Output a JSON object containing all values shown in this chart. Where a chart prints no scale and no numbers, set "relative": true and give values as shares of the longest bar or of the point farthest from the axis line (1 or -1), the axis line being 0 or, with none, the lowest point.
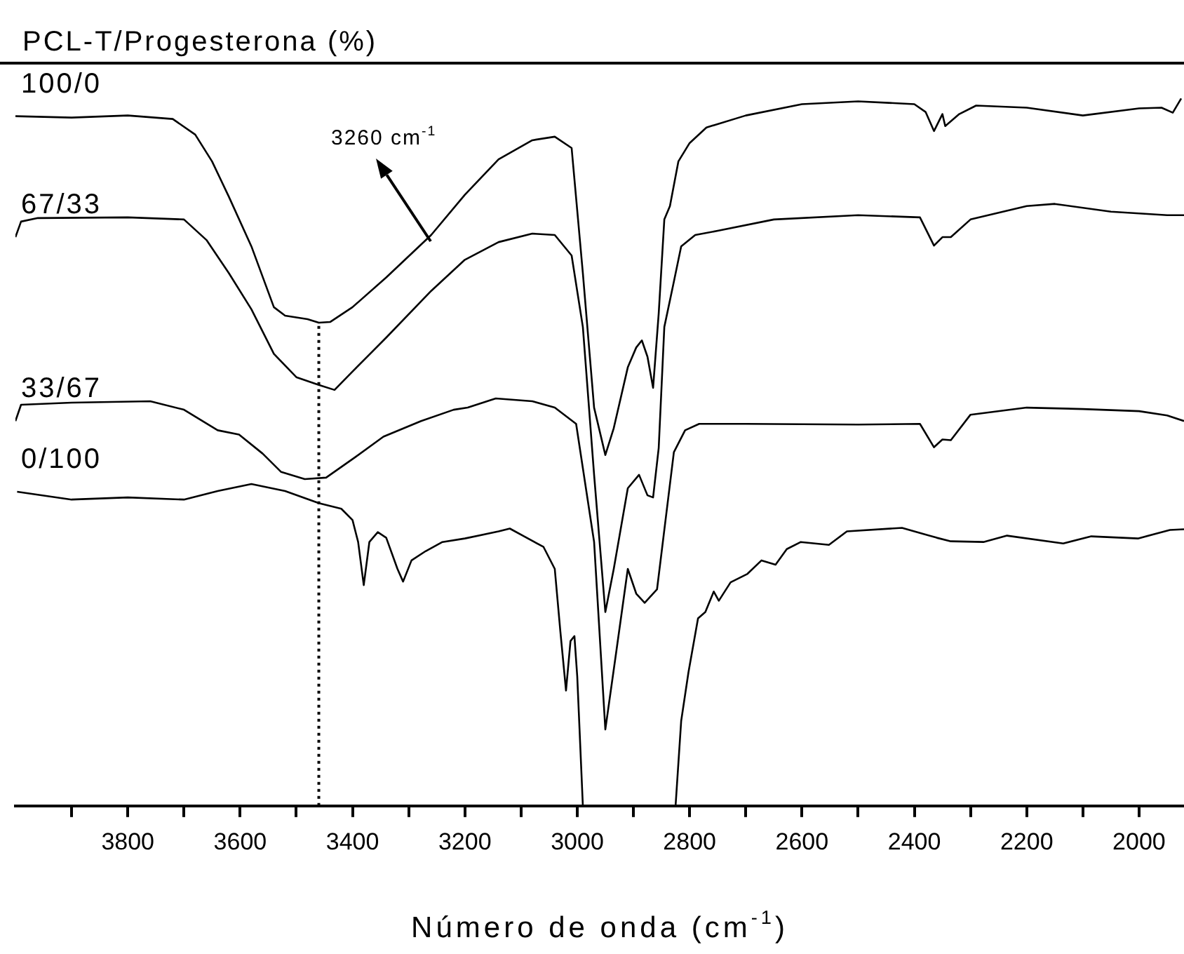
{
  "chart_data": {
    "type": "line",
    "title": "PCL-T/Progesterona (%)",
    "xlabel": "Número de onda (cm$^{-1}$)",
    "relative": true,
    "legend": false,
    "grid": false,
    "marker": "none",
    "line_style": "solid",
    "xlim": [
      4000,
      1920
    ],
    "xticks": [
      {
        "value": 3900,
        "label": null
      },
      3800,
      {
        "value": 3700,
        "label": null
      },
      3600,
      {
        "value": 3500,
        "label": null
      },
      3400,
      {
        "value": 3300,
        "label": null
      },
      3200,
      {
        "value": 3100,
        "label": null
      },
      3000,
      {
        "value": 2900,
        "label": null
      },
      2800,
      {
        "value": 2700,
        "label": null
      },
      2600,
      {
        "value": 2500,
        "label": null
      },
      2400,
      {
        "value": 2300,
        "label": null
      },
      2200,
      {
        "value": 2100,
        "label": null
      },
      2000
    ],
    "ref_lines": [
      {
        "axis": "x",
        "value": 3460,
        "color": "#000000",
        "line_style": "dotted"
      }
    ],
    "annotations": [
      "3260 cm$^{-1}$"
    ],
    "series": [
      {
        "name": "100/0",
        "color": "#000000",
        "x": [
          4000,
          3900,
          3800,
          3720,
          3680,
          3650,
          3620,
          3580,
          3540,
          3520,
          3480,
          3460,
          3440,
          3400,
          3340,
          3260,
          3200,
          3140,
          3080,
          3040,
          3010,
          2990,
          2970,
          2950,
          2935,
          2910,
          2895,
          2885,
          2875,
          2865,
          2855,
          2845,
          2835,
          2820,
          2800,
          2770,
          2700,
          2600,
          2500,
          2400,
          2380,
          2365,
          2350,
          2345,
          2320,
          2290,
          2200,
          2100,
          2000,
          1960,
          1940,
          1925
        ],
        "values": [
          0.975,
          0.973,
          0.976,
          0.971,
          0.949,
          0.911,
          0.861,
          0.791,
          0.705,
          0.693,
          0.688,
          0.683,
          0.684,
          0.705,
          0.747,
          0.807,
          0.864,
          0.914,
          0.941,
          0.946,
          0.93,
          0.753,
          0.563,
          0.496,
          0.534,
          0.62,
          0.648,
          0.658,
          0.635,
          0.591,
          0.696,
          0.829,
          0.848,
          0.911,
          0.937,
          0.959,
          0.976,
          0.992,
          0.996,
          0.992,
          0.981,
          0.954,
          0.978,
          0.961,
          0.978,
          0.99,
          0.987,
          0.976,
          0.986,
          0.987,
          0.98,
          1
        ]
      },
      {
        "name": "67/33",
        "color": "#000000",
        "x": [
          4000,
          3990,
          3960,
          3800,
          3700,
          3660,
          3620,
          3580,
          3540,
          3500,
          3460,
          3432,
          3400,
          3340,
          3260,
          3200,
          3140,
          3080,
          3040,
          3010,
          2990,
          2970,
          2950,
          2935,
          2910,
          2890,
          2875,
          2865,
          2855,
          2845,
          2828,
          2815,
          2790,
          2750,
          2650,
          2500,
          2390,
          2365,
          2350,
          2335,
          2300,
          2200,
          2150,
          2050,
          1950,
          1920
        ],
        "values": [
          0.804,
          0.826,
          0.831,
          0.832,
          0.829,
          0.8,
          0.753,
          0.702,
          0.639,
          0.606,
          0.595,
          0.588,
          0.614,
          0.662,
          0.728,
          0.772,
          0.797,
          0.809,
          0.807,
          0.778,
          0.677,
          0.468,
          0.274,
          0.335,
          0.449,
          0.468,
          0.439,
          0.436,
          0.506,
          0.677,
          0.741,
          0.791,
          0.807,
          0.813,
          0.829,
          0.835,
          0.832,
          0.792,
          0.804,
          0.804,
          0.829,
          0.848,
          0.851,
          0.84,
          0.835,
          0.835
        ]
      },
      {
        "name": "33/67",
        "color": "#000000",
        "x": [
          4000,
          3990,
          3900,
          3760,
          3700,
          3640,
          3602,
          3560,
          3527,
          3485,
          3447,
          3395,
          3345,
          3278,
          3220,
          3195,
          3145,
          3080,
          3040,
          3002,
          2970,
          2950,
          2930,
          2910,
          2895,
          2880,
          2858,
          2828,
          2808,
          2783,
          2700,
          2500,
          2390,
          2365,
          2350,
          2335,
          2300,
          2200,
          2100,
          2000,
          1950,
          1920
        ],
        "values": [
          0.544,
          0.567,
          0.57,
          0.572,
          0.56,
          0.531,
          0.525,
          0.498,
          0.472,
          0.462,
          0.464,
          0.493,
          0.522,
          0.544,
          0.56,
          0.563,
          0.576,
          0.572,
          0.563,
          0.54,
          0.373,
          0.108,
          0.221,
          0.335,
          0.3,
          0.287,
          0.306,
          0.5,
          0.531,
          0.54,
          0.54,
          0.539,
          0.54,
          0.507,
          0.518,
          0.517,
          0.553,
          0.563,
          0.561,
          0.558,
          0.552,
          0.544
        ]
      },
      {
        "name": "0/100",
        "color": "#000000",
        "x": [
          3997,
          3900,
          3800,
          3700,
          3640,
          3580,
          3520,
          3460,
          3420,
          3400,
          3390,
          3380,
          3370,
          3355,
          3340,
          3320,
          3310,
          3295,
          3270,
          3240,
          3200,
          3140,
          3120,
          3060,
          3040,
          3030,
          3020,
          3012,
          3005,
          3000,
          2990,
          2900,
          2825,
          2815,
          2802,
          2785,
          2772,
          2757,
          2748,
          2727,
          2697,
          2672,
          2647,
          2627,
          2602,
          2552,
          2520,
          2422,
          2360,
          2335,
          2277,
          2235,
          2135,
          2085,
          2002,
          1945,
          1920
        ],
        "values": [
          0.444,
          0.433,
          0.436,
          0.433,
          0.445,
          0.455,
          0.445,
          0.428,
          0.42,
          0.404,
          0.373,
          0.312,
          0.373,
          0.387,
          0.379,
          0.335,
          0.317,
          0.347,
          0.36,
          0.373,
          0.378,
          0.388,
          0.392,
          0.366,
          0.335,
          0.246,
          0.163,
          0.233,
          0.24,
          0.183,
          0,
          null,
          0,
          0.12,
          0.189,
          0.265,
          0.274,
          0.303,
          0.29,
          0.316,
          0.328,
          0.347,
          0.341,
          0.363,
          0.373,
          0.369,
          0.388,
          0.393,
          0.379,
          0.374,
          0.373,
          0.382,
          0.371,
          0.381,
          0.378,
          0.39,
          0.391
        ]
      }
    ]
  }
}
